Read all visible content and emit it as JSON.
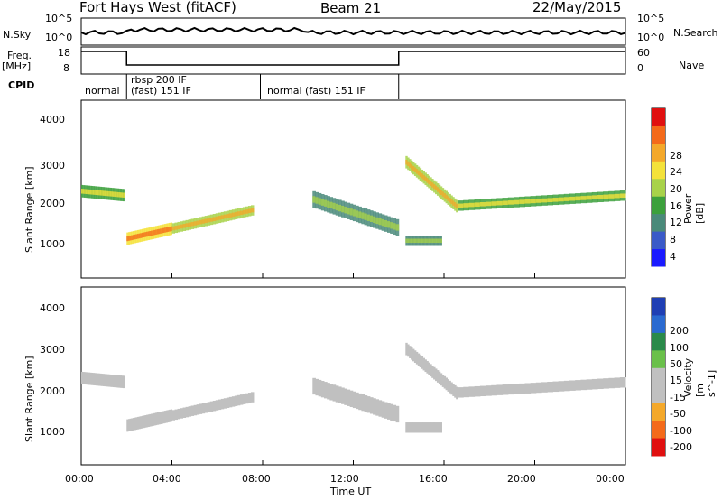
{
  "header": {
    "title": "Fort Hays West (fitACF)",
    "beam": "Beam 21",
    "date": "22/May/2015"
  },
  "left_labels": {
    "nsky": "N.Sky",
    "freq": "Freq.",
    "freq_unit": "[MHz]",
    "cpid": "CPID"
  },
  "right_labels": {
    "nsearch": "N.Search",
    "nave": "Nave"
  },
  "ticks": {
    "noise_left": [
      "10^5",
      "10^0"
    ],
    "noise_right": [
      "10^5",
      "10^0"
    ],
    "freq_left": [
      "18",
      "8"
    ],
    "freq_right": [
      "60",
      "0"
    ],
    "range": [
      "4000",
      "3000",
      "2000",
      "1000"
    ],
    "time": [
      "00:00",
      "04:00",
      "08:00",
      "12:00",
      "16:00",
      "20:00",
      "00:00"
    ]
  },
  "cpid_modes": [
    {
      "label": "normal",
      "label2": ""
    },
    {
      "label": "rbsp 200 IF",
      "label2": "(fast) 151 IF"
    },
    {
      "label": "normal (fast) 151 IF",
      "label2": ""
    }
  ],
  "axes": {
    "ylabel": "Slant Range [km]",
    "xlabel": "Time UT"
  },
  "colors": {
    "power": [
      "#1a1aff",
      "#3a5ac8",
      "#4a8a7a",
      "#3ca03c",
      "#a8d24a",
      "#f4e23a",
      "#f4a82a",
      "#f46a1a",
      "#e01010"
    ],
    "velocity": [
      "#1f3fb4",
      "#2a6ad0",
      "#2a8a4a",
      "#6ac04a",
      "#c0c0c0",
      "#c0c0c0",
      "#f4a82a",
      "#f46a1a",
      "#e01010"
    ]
  },
  "colorbars": {
    "power": {
      "title": "Power [dB]",
      "labels": [
        "28",
        "24",
        "20",
        "16",
        "12",
        "8",
        "4"
      ]
    },
    "velocity": {
      "title": "Velocity [m s^-1]",
      "labels": [
        "200",
        "100",
        "50",
        "15",
        "-15",
        "-50",
        "-100",
        "-200"
      ]
    }
  },
  "chart_data": {
    "type": "heatmap",
    "x_range_hours": [
      0,
      24
    ],
    "y_range_km": [
      200,
      4500
    ],
    "cpid_changes_hours": [
      2.0,
      7.9,
      14.0
    ],
    "freq_steps": [
      {
        "t_start": 0,
        "t_end": 2.0,
        "freq_mhz": 18
      },
      {
        "t_start": 2.0,
        "t_end": 7.9,
        "freq_mhz": 8
      },
      {
        "t_start": 7.9,
        "t_end": 14.0,
        "freq_mhz": 8
      },
      {
        "t_start": 14.0,
        "t_end": 24,
        "freq_mhz": 18
      }
    ],
    "echo_bands": [
      {
        "t_start": 0.0,
        "t_end": 1.9,
        "r_start": 2300,
        "r_end": 2200,
        "width": 300,
        "power": 14
      },
      {
        "t_start": 2.0,
        "t_end": 4.0,
        "r_start": 1150,
        "r_end": 1400,
        "width": 300,
        "power": 20
      },
      {
        "t_start": 4.0,
        "t_end": 7.6,
        "r_start": 1400,
        "r_end": 1850,
        "width": 250,
        "power": 16
      },
      {
        "t_start": 10.2,
        "t_end": 14.0,
        "r_start": 2100,
        "r_end": 1400,
        "width": 400,
        "power": 10
      },
      {
        "t_start": 14.3,
        "t_end": 16.6,
        "r_start": 3000,
        "r_end": 1900,
        "width": 300,
        "power": 16
      },
      {
        "t_start": 16.6,
        "t_end": 24.0,
        "r_start": 1950,
        "r_end": 2200,
        "width": 250,
        "power": 14
      },
      {
        "t_start": 14.3,
        "t_end": 15.9,
        "r_start": 1100,
        "r_end": 1100,
        "width": 250,
        "power": 10
      }
    ]
  }
}
